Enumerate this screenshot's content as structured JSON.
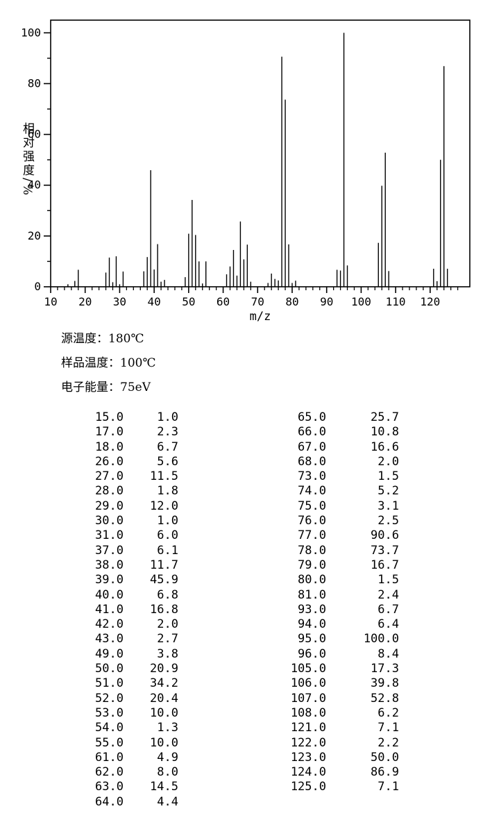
{
  "colors": {
    "ink": "#000000",
    "background": "#ffffff"
  },
  "chart_data": {
    "type": "bar",
    "subtype": "mass-spectrum-stick-plot",
    "title": "",
    "xlabel": "m/z",
    "ylabel": "相对强度/%",
    "xlim": [
      10,
      131.5
    ],
    "ylim": [
      0,
      105
    ],
    "grid": false,
    "legend": "none",
    "x_major_ticks": [
      10,
      20,
      30,
      40,
      50,
      60,
      70,
      80,
      90,
      100,
      110,
      120
    ],
    "x_minor_step": 2,
    "x_minor_max": 128,
    "y_major_ticks": [
      0,
      20,
      40,
      60,
      80,
      100
    ],
    "y_minor_ticks": [
      10,
      30,
      50,
      70,
      90
    ],
    "peaks": {
      "x": [
        15,
        17,
        18,
        26,
        27,
        28,
        29,
        30,
        31,
        37,
        38,
        39,
        40,
        41,
        42,
        43,
        49,
        50,
        51,
        52,
        53,
        54,
        55,
        61,
        62,
        63,
        64,
        65,
        66,
        67,
        68,
        73,
        74,
        75,
        76,
        77,
        78,
        79,
        80,
        81,
        93,
        94,
        95,
        96,
        105,
        106,
        107,
        108,
        121,
        122,
        123,
        124,
        125
      ],
      "y": [
        1.0,
        2.3,
        6.7,
        5.6,
        11.5,
        1.8,
        12.0,
        1.0,
        6.0,
        6.1,
        11.7,
        45.9,
        6.8,
        16.8,
        2.0,
        2.7,
        3.8,
        20.9,
        34.2,
        20.4,
        10.0,
        1.3,
        10.0,
        4.9,
        8.0,
        14.5,
        4.4,
        25.7,
        10.8,
        16.6,
        2.0,
        1.5,
        5.2,
        3.1,
        2.5,
        90.6,
        73.7,
        16.7,
        1.5,
        2.4,
        6.7,
        6.4,
        100.0,
        8.4,
        17.3,
        39.8,
        52.8,
        6.2,
        7.1,
        2.2,
        50.0,
        86.9,
        7.1
      ]
    }
  },
  "annotations": {
    "lines": [
      "源温度：180℃",
      "样品温度：100℃",
      "电子能量：75eV"
    ]
  },
  "table": {
    "columns": [
      {
        "rows": [
          [
            "15.0",
            "1.0"
          ],
          [
            "17.0",
            "2.3"
          ],
          [
            "18.0",
            "6.7"
          ],
          [
            "26.0",
            "5.6"
          ],
          [
            "27.0",
            "11.5"
          ],
          [
            "28.0",
            "1.8"
          ],
          [
            "29.0",
            "12.0"
          ],
          [
            "30.0",
            "1.0"
          ],
          [
            "31.0",
            "6.0"
          ],
          [
            "37.0",
            "6.1"
          ],
          [
            "38.0",
            "11.7"
          ],
          [
            "39.0",
            "45.9"
          ],
          [
            "40.0",
            "6.8"
          ],
          [
            "41.0",
            "16.8"
          ],
          [
            "42.0",
            "2.0"
          ],
          [
            "43.0",
            "2.7"
          ],
          [
            "49.0",
            "3.8"
          ],
          [
            "50.0",
            "20.9"
          ],
          [
            "51.0",
            "34.2"
          ],
          [
            "52.0",
            "20.4"
          ],
          [
            "53.0",
            "10.0"
          ],
          [
            "54.0",
            "1.3"
          ],
          [
            "55.0",
            "10.0"
          ],
          [
            "61.0",
            "4.9"
          ],
          [
            "62.0",
            "8.0"
          ],
          [
            "63.0",
            "14.5"
          ],
          [
            "64.0",
            "4.4"
          ]
        ]
      },
      {
        "rows": [
          [
            "65.0",
            "25.7"
          ],
          [
            "66.0",
            "10.8"
          ],
          [
            "67.0",
            "16.6"
          ],
          [
            "68.0",
            "2.0"
          ],
          [
            "73.0",
            "1.5"
          ],
          [
            "74.0",
            "5.2"
          ],
          [
            "75.0",
            "3.1"
          ],
          [
            "76.0",
            "2.5"
          ],
          [
            "77.0",
            "90.6"
          ],
          [
            "78.0",
            "73.7"
          ],
          [
            "79.0",
            "16.7"
          ],
          [
            "80.0",
            "1.5"
          ],
          [
            "81.0",
            "2.4"
          ],
          [
            "93.0",
            "6.7"
          ],
          [
            "94.0",
            "6.4"
          ],
          [
            "95.0",
            "100.0"
          ],
          [
            "96.0",
            "8.4"
          ],
          [
            "105.0",
            "17.3"
          ],
          [
            "106.0",
            "39.8"
          ],
          [
            "107.0",
            "52.8"
          ],
          [
            "108.0",
            "6.2"
          ],
          [
            "121.0",
            "7.1"
          ],
          [
            "122.0",
            "2.2"
          ],
          [
            "123.0",
            "50.0"
          ],
          [
            "124.0",
            "86.9"
          ],
          [
            "125.0",
            "7.1"
          ]
        ]
      }
    ]
  }
}
